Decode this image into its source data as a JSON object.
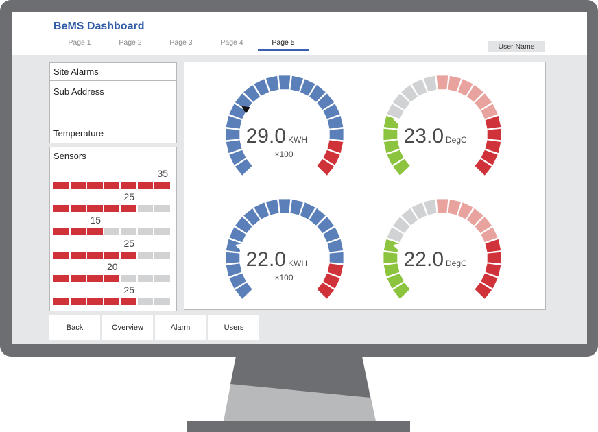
{
  "app": {
    "title": "BeMS Dashboard"
  },
  "tabs": [
    {
      "label": "Page 1"
    },
    {
      "label": "Page 2"
    },
    {
      "label": "Page 3"
    },
    {
      "label": "Page 4"
    },
    {
      "label": "Page 5",
      "active": true
    }
  ],
  "user": {
    "name": "User Name"
  },
  "site_alarms": {
    "title": "Site Alarms",
    "sub_address_label": "Sub Address",
    "temperature_label": "Temperature"
  },
  "sensors": {
    "title": "Sensors",
    "total_segments": 7,
    "items": [
      {
        "value": "35",
        "filled": 7
      },
      {
        "value": "25",
        "filled": 5
      },
      {
        "value": "15",
        "filled": 3
      },
      {
        "value": "25",
        "filled": 5
      },
      {
        "value": "20",
        "filled": 4
      },
      {
        "value": "25",
        "filled": 5
      }
    ]
  },
  "gauges": [
    {
      "value": "29.0",
      "unit": "KWH",
      "multiplier": "×100",
      "kind": "energy",
      "marker_fraction": 0.29
    },
    {
      "value": "23.0",
      "unit": "DegC",
      "multiplier": "",
      "kind": "temperature",
      "marker_fraction": 0.23
    },
    {
      "value": "22.0",
      "unit": "KWH",
      "multiplier": "×100",
      "kind": "energy",
      "marker_fraction": 0.22
    },
    {
      "value": "22.0",
      "unit": "DegC",
      "multiplier": "",
      "kind": "temperature",
      "marker_fraction": 0.22
    }
  ],
  "buttons": {
    "back": "Back",
    "overview": "Overview",
    "alarm": "Alarm",
    "users": "Users"
  },
  "colors": {
    "brand": "#2e5aa8",
    "gauge_blue": "#5b7fb9",
    "alarm_red": "#d0323a",
    "light_red": "#e8a39e",
    "ok_green": "#8cc43f",
    "inactive_gray": "#d1d2d3"
  }
}
